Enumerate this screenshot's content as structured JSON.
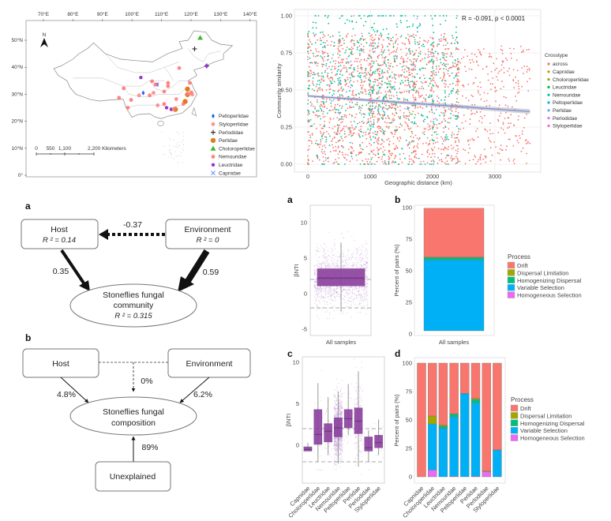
{
  "map": {
    "lon_labels": [
      "70°E",
      "80°E",
      "90°E",
      "100°E",
      "110°E",
      "120°E",
      "130°E",
      "140°E"
    ],
    "lon_values": [
      70,
      80,
      90,
      100,
      110,
      120,
      130,
      140
    ],
    "lat_labels": [
      "50°N",
      "40°N",
      "30°N",
      "20°N",
      "10°N",
      "0°"
    ],
    "lat_values": [
      50,
      40,
      30,
      20,
      10,
      0
    ],
    "north_label": "N",
    "scale_labels": [
      "0",
      "550",
      "1,100",
      "2,200 Kilometers"
    ],
    "legend": [
      {
        "name": "Peltoperlidae",
        "color": "#1f5fff",
        "symbol": "diamond"
      },
      {
        "name": "Styloperlidae",
        "color": "#ff7f7f",
        "symbol": "circle"
      },
      {
        "name": "Perlodidae",
        "color": "#333333",
        "symbol": "plus"
      },
      {
        "name": "Perlidae",
        "color": "#e07b20",
        "symbol": "hexagon"
      },
      {
        "name": "Choloroperlidae",
        "color": "#3cb82c",
        "symbol": "triangle"
      },
      {
        "name": "Nemouridae",
        "color": "#ff6f6f",
        "symbol": "circle"
      },
      {
        "name": "Leuctridae",
        "color": "#9b30d0",
        "symbol": "star"
      },
      {
        "name": "Capnidae",
        "color": "#6d8cff",
        "symbol": "cross"
      }
    ],
    "sites": [
      {
        "family": "Choloroperlidae",
        "lon": 123.1,
        "lat": 50.9
      },
      {
        "family": "Perlodidae",
        "lon": 121.2,
        "lat": 46.8
      },
      {
        "family": "Perlodidae",
        "lon": 125.3,
        "lat": 40.5
      },
      {
        "family": "Leuctridae",
        "lon": 125.3,
        "lat": 40.5
      },
      {
        "family": "Leuctridae",
        "lon": 103,
        "lat": 36.2
      },
      {
        "family": "Leuctridae",
        "lon": 108.4,
        "lat": 33.6
      },
      {
        "family": "Capnidae",
        "lon": 108.4,
        "lat": 33.6
      },
      {
        "family": "Leuctridae",
        "lon": 111.7,
        "lat": 25
      },
      {
        "family": "Leuctridae",
        "lon": 113.3,
        "lat": 24.4
      },
      {
        "family": "Peltoperlidae",
        "lon": 103.8,
        "lat": 30.5
      },
      {
        "family": "Perlidae",
        "lon": 118.8,
        "lat": 31.9
      },
      {
        "family": "Perlidae",
        "lon": 118.8,
        "lat": 29.9
      },
      {
        "family": "Perlidae",
        "lon": 118,
        "lat": 27.3
      },
      {
        "family": "Perlidae",
        "lon": 114.7,
        "lat": 24.4
      },
      {
        "family": "Nemouridae",
        "lon": 116,
        "lat": 39.7
      },
      {
        "family": "Nemouridae",
        "lon": 106.8,
        "lat": 34.8
      },
      {
        "family": "Styloperlidae",
        "lon": 107.9,
        "lat": 33.6
      },
      {
        "family": "Nemouridae",
        "lon": 112.2,
        "lat": 34.2
      },
      {
        "family": "Nemouridae",
        "lon": 112.2,
        "lat": 33
      },
      {
        "family": "Nemouridae",
        "lon": 97.2,
        "lat": 32.2
      },
      {
        "family": "Styloperlidae",
        "lon": 102.4,
        "lat": 29.6
      },
      {
        "family": "Nemouridae",
        "lon": 106,
        "lat": 29.6
      },
      {
        "family": "Styloperlidae",
        "lon": 107.3,
        "lat": 30.5
      },
      {
        "family": "Nemouridae",
        "lon": 110.9,
        "lat": 31
      },
      {
        "family": "Nemouridae",
        "lon": 95.6,
        "lat": 28.7
      },
      {
        "family": "Nemouridae",
        "lon": 99.7,
        "lat": 27.9
      },
      {
        "family": "Nemouridae",
        "lon": 98.6,
        "lat": 25
      },
      {
        "family": "Styloperlidae",
        "lon": 108.7,
        "lat": 25.9
      },
      {
        "family": "Nemouridae",
        "lon": 110.9,
        "lat": 26.4
      },
      {
        "family": "Styloperlidae",
        "lon": 115,
        "lat": 28.2
      },
      {
        "family": "Nemouridae",
        "lon": 119.6,
        "lat": 34.2
      },
      {
        "family": "Styloperlidae",
        "lon": 118.8,
        "lat": 30.2
      },
      {
        "family": "Nemouridae",
        "lon": 120.1,
        "lat": 30.7
      },
      {
        "family": "Styloperlidae",
        "lon": 120.4,
        "lat": 29.9
      },
      {
        "family": "Nemouridae",
        "lon": 117.4,
        "lat": 26.4
      },
      {
        "family": "Styloperlidae",
        "lon": 114.1,
        "lat": 24.4
      }
    ]
  },
  "chart_data": [
    {
      "id": "distance-decay",
      "type": "scatter",
      "title": "",
      "xlabel": "Geographic distance (km)",
      "ylabel": "Community similarity",
      "xlim": [
        -100,
        3650
      ],
      "ylim": [
        0,
        1
      ],
      "xticks": [
        0,
        1000,
        2000,
        3000
      ],
      "xtick_labels": [
        "0",
        "1000",
        "2000",
        "3000"
      ],
      "yticks": [
        0,
        0.25,
        0.5,
        0.75,
        1
      ],
      "ytick_labels": [
        "0.00",
        "0.25",
        "0.50",
        "0.75",
        "1.00"
      ],
      "annotation": "R = -0.091, p < 0.0001",
      "regression": {
        "x": [
          0,
          3560
        ],
        "y": [
          0.46,
          0.355
        ]
      },
      "legend_title": "Crosstype",
      "legend_position": "right",
      "series": [
        {
          "name": "across",
          "color": "#F8766D"
        },
        {
          "name": "Capnidae",
          "color": "#D39200"
        },
        {
          "name": "Choloroperlidae",
          "color": "#93AA00"
        },
        {
          "name": "Leuctridae",
          "color": "#00BA38"
        },
        {
          "name": "Nemouridae",
          "color": "#00C19F"
        },
        {
          "name": "Peltoperlidae",
          "color": "#00B9E3"
        },
        {
          "name": "Perlidae",
          "color": "#619CFF"
        },
        {
          "name": "Perlodidae",
          "color": "#DB72FB"
        },
        {
          "name": "Styloperlidae",
          "color": "#FF61C3"
        }
      ],
      "grid": true
    },
    {
      "id": "bnti-all",
      "type": "box",
      "panel_label": "a",
      "ylabel": "βNTI",
      "categories": [
        "All samples"
      ],
      "yticks": [
        -5,
        0,
        5,
        10
      ],
      "ytick_labels": [
        "-5",
        "0",
        "5",
        "10"
      ],
      "ylim": [
        -6,
        12
      ],
      "thresholds": [
        -2,
        2
      ],
      "boxes": [
        {
          "q1": 1.1,
          "median": 2.2,
          "q3": 3.5,
          "whisker_low": -2.5,
          "whisker_high": 7.2
        }
      ],
      "color": "#8e44a0"
    },
    {
      "id": "process-all",
      "type": "bar",
      "stacked": true,
      "panel_label": "b",
      "ylabel": "Percent of pairs (%)",
      "categories": [
        "All samples"
      ],
      "yticks": [
        0,
        25,
        50,
        75,
        100
      ],
      "ytick_labels": [
        "0",
        "25",
        "50",
        "75",
        "100"
      ],
      "ylim": [
        0,
        100
      ],
      "legend_title": "Process",
      "legend_position": "right",
      "series": [
        {
          "name": "Homogeneous Selection",
          "color": "#E76BF3",
          "values": [
            0
          ]
        },
        {
          "name": "Variable Selection",
          "color": "#00B0F6",
          "values": [
            56
          ]
        },
        {
          "name": "Homogenizing Dispersal",
          "color": "#00BF7D",
          "values": [
            2
          ]
        },
        {
          "name": "Dispersal Limitation",
          "color": "#A3A500",
          "values": [
            0.3
          ]
        },
        {
          "name": "Drift",
          "color": "#F8766D",
          "values": [
            38.7
          ]
        }
      ],
      "legend_order": [
        "Drift",
        "Dispersal Limitation",
        "Homogenizing Dispersal",
        "Variable Selection",
        "Homogeneous Selection"
      ]
    },
    {
      "id": "bnti-family",
      "type": "box",
      "panel_label": "c",
      "ylabel": "βNTI",
      "categories": [
        "Capnidae",
        "Choloroperlidae",
        "Leuctridae",
        "Nemouridae",
        "Peltoperlidae",
        "Perlidae",
        "Perlodidae",
        "Styloperlidae"
      ],
      "yticks": [
        0,
        5,
        10
      ],
      "ytick_labels": [
        "0",
        "5",
        "10"
      ],
      "ylim": [
        -5,
        10.5
      ],
      "thresholds": [
        -2,
        2
      ],
      "boxes": [
        {
          "q1": -0.7,
          "median": -0.5,
          "q3": -0.2,
          "whisker_low": -0.7,
          "whisker_high": 0.3
        },
        {
          "q1": 0.1,
          "median": 1.3,
          "q3": 4.3,
          "whisker_low": -2,
          "whisker_high": 7.5
        },
        {
          "q1": 0.4,
          "median": 1.7,
          "q3": 2.6,
          "whisker_low": -1.2,
          "whisker_high": 5.8
        },
        {
          "q1": 1.0,
          "median": 2.1,
          "q3": 3.3,
          "whisker_low": -2.2,
          "whisker_high": 6.5
        },
        {
          "q1": 2.1,
          "median": 3.2,
          "q3": 4.3,
          "whisker_low": 1.2,
          "whisker_high": 7.4
        },
        {
          "q1": 1.4,
          "median": 2.9,
          "q3": 4.5,
          "whisker_low": -2.6,
          "whisker_high": 8.9
        },
        {
          "q1": -0.7,
          "median": -0.3,
          "q3": 1.0,
          "whisker_low": -2,
          "whisker_high": 1.8
        },
        {
          "q1": -0.3,
          "median": 0.3,
          "q3": 1.2,
          "whisker_low": -1.2,
          "whisker_high": 3.1
        }
      ],
      "color": "#8e44a0"
    },
    {
      "id": "process-family",
      "type": "bar",
      "stacked": true,
      "panel_label": "d",
      "ylabel": "Percent of pairs (%)",
      "categories": [
        "Capnidae",
        "Choloroperlidae",
        "Leuctridae",
        "Nemouridae",
        "Peltoperlidae",
        "Perlidae",
        "Perlodidae",
        "Styloperlidae"
      ],
      "yticks": [
        0,
        25,
        50,
        75,
        100
      ],
      "ytick_labels": [
        "0",
        "25",
        "50",
        "75",
        "100"
      ],
      "ylim": [
        0,
        100
      ],
      "legend_title": "Process",
      "legend_position": "right",
      "series": [
        {
          "name": "Homogeneous Selection",
          "color": "#E76BF3",
          "values": [
            0,
            6,
            0,
            0.5,
            0,
            0.5,
            4.5,
            0
          ]
        },
        {
          "name": "Variable Selection",
          "color": "#00B0F6",
          "values": [
            0,
            40.5,
            42.5,
            52,
            73,
            64.5,
            0,
            23.5
          ]
        },
        {
          "name": "Homogenizing Dispersal",
          "color": "#00BF7D",
          "values": [
            0,
            0,
            2,
            2.5,
            0.5,
            3,
            0,
            0
          ]
        },
        {
          "name": "Dispersal Limitation",
          "color": "#A3A500",
          "values": [
            0,
            7,
            1,
            0.5,
            0,
            1,
            0.5,
            0.3
          ]
        },
        {
          "name": "Drift",
          "color": "#F8766D",
          "values": [
            100,
            46.5,
            54.5,
            44.5,
            26.5,
            31,
            95,
            76.2
          ]
        }
      ],
      "legend_order": [
        "Drift",
        "Dispersal Limitation",
        "Homogenizing Dispersal",
        "Variable Selection",
        "Homogeneous Selection"
      ]
    }
  ],
  "sem": {
    "panel_label": "a",
    "host": {
      "label": "Host",
      "r2": "R ² = 0.14"
    },
    "environment": {
      "label": "Environment",
      "r2": "R ² = 0"
    },
    "outcome": {
      "line1": "Stoneflies fungal",
      "line2": "community",
      "r2": "R ² = 0.315"
    },
    "paths": {
      "env_to_host": "-0.37",
      "host_to_outcome": "0.35",
      "env_to_outcome": "0.59"
    }
  },
  "vpa": {
    "panel_label": "b",
    "host": "Host",
    "environment": "Environment",
    "outcome_line1": "Stoneflies fungal",
    "outcome_line2": "composition",
    "unexplained": "Unexplained",
    "values": {
      "host": "4.8%",
      "environment": "6.2%",
      "shared": "0%",
      "unexplained": "89%"
    }
  }
}
